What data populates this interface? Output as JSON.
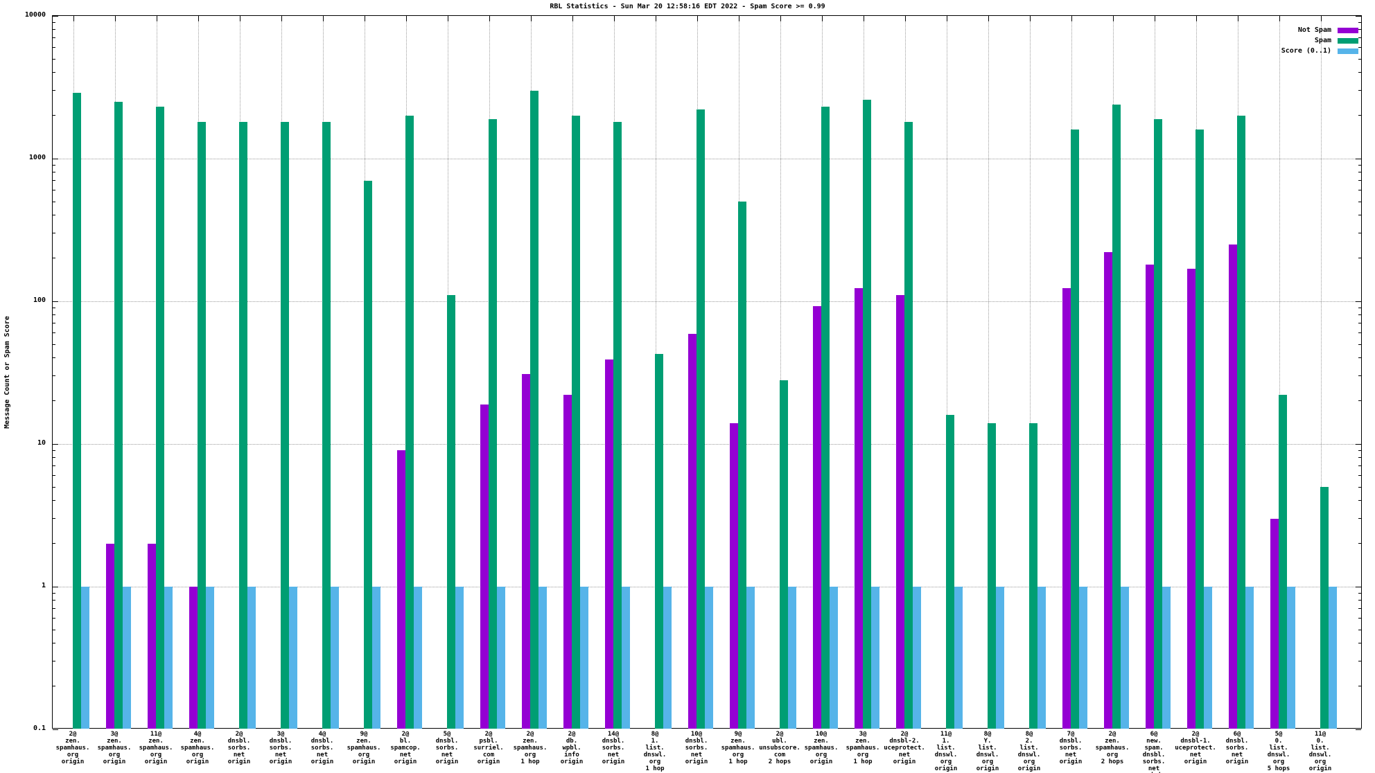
{
  "title": "RBL Statistics - Sun Mar 20 12:58:16 EDT 2022 - Spam Score >= 0.99",
  "ylabel": "Message Count or Spam Score",
  "legend": {
    "items": [
      {
        "label": "Not Spam",
        "color": "#9400d3",
        "series_key": "not_spam"
      },
      {
        "label": "Spam",
        "color": "#009e73",
        "series_key": "spam"
      },
      {
        "label": "Score (0..1)",
        "color": "#56b4e9",
        "series_key": "score"
      }
    ]
  },
  "colors": {
    "not_spam": "#9400d3",
    "spam": "#009e73",
    "score": "#56b4e9",
    "grid": "#9a9a9a",
    "axis": "#000000"
  },
  "chart_data": {
    "type": "bar",
    "yscale": "log",
    "ylim": [
      0.1,
      10000
    ],
    "ytick_labels": [
      "10000",
      "1000",
      "100",
      "10",
      "1",
      "0.1"
    ],
    "grid": true,
    "legend_position": "top-right-inside",
    "series": [
      "Not Spam",
      "Spam",
      "Score (0..1)"
    ],
    "title": "RBL Statistics - Sun Mar 20 12:58:16 EDT 2022 - Spam Score >= 0.99",
    "xlabel": "",
    "ylabel": "Message Count or Spam Score",
    "groups": [
      {
        "label": [
          "2@",
          "zen.",
          "spamhaus.",
          "org",
          "origin"
        ],
        "not_spam": null,
        "spam": 2900,
        "score": 1
      },
      {
        "label": [
          "3@",
          "zen.",
          "spamhaus.",
          "org",
          "origin"
        ],
        "not_spam": 2,
        "spam": 2500,
        "score": 1
      },
      {
        "label": [
          "11@",
          "zen.",
          "spamhaus.",
          "org",
          "origin"
        ],
        "not_spam": 2,
        "spam": 2300,
        "score": 1
      },
      {
        "label": [
          "4@",
          "zen.",
          "spamhaus.",
          "org",
          "origin"
        ],
        "not_spam": 1,
        "spam": 1800,
        "score": 1
      },
      {
        "label": [
          "2@",
          "dnsbl.",
          "sorbs.",
          "net",
          "origin"
        ],
        "not_spam": null,
        "spam": 1800,
        "score": 1
      },
      {
        "label": [
          "3@",
          "dnsbl.",
          "sorbs.",
          "net",
          "origin"
        ],
        "not_spam": null,
        "spam": 1800,
        "score": 1
      },
      {
        "label": [
          "4@",
          "dnsbl.",
          "sorbs.",
          "net",
          "origin"
        ],
        "not_spam": null,
        "spam": 1800,
        "score": 1
      },
      {
        "label": [
          "9@",
          "zen.",
          "spamhaus.",
          "org",
          "origin"
        ],
        "not_spam": null,
        "spam": 700,
        "score": 1
      },
      {
        "label": [
          "2@",
          "bl.",
          "spamcop.",
          "net",
          "origin"
        ],
        "not_spam": 9,
        "spam": 2000,
        "score": 1
      },
      {
        "label": [
          "5@",
          "dnsbl.",
          "sorbs.",
          "net",
          "origin"
        ],
        "not_spam": null,
        "spam": 110,
        "score": 1
      },
      {
        "label": [
          "2@",
          "psbl.",
          "surriel.",
          "com",
          "origin"
        ],
        "not_spam": 19,
        "spam": 1900,
        "score": 1
      },
      {
        "label": [
          "2@",
          "zen.",
          "spamhaus.",
          "org",
          "1 hop"
        ],
        "not_spam": 31,
        "spam": 3000,
        "score": 1
      },
      {
        "label": [
          "2@",
          "db.",
          "wpbl.",
          "info",
          "origin"
        ],
        "not_spam": 22,
        "spam": 2000,
        "score": 1
      },
      {
        "label": [
          "14@",
          "dnsbl.",
          "sorbs.",
          "net",
          "origin"
        ],
        "not_spam": 39,
        "spam": 1800,
        "score": 1
      },
      {
        "label": [
          "8@",
          "1.",
          "list.",
          "dnswl.",
          "org",
          "1 hop"
        ],
        "not_spam": null,
        "spam": 43,
        "score": 1
      },
      {
        "label": [
          "10@",
          "dnsbl.",
          "sorbs.",
          "net",
          "origin"
        ],
        "not_spam": 59,
        "spam": 2200,
        "score": 1
      },
      {
        "label": [
          "9@",
          "zen.",
          "spamhaus.",
          "org",
          "1 hop"
        ],
        "not_spam": 14,
        "spam": 500,
        "score": 1
      },
      {
        "label": [
          "2@",
          "ubl.",
          "unsubscore.",
          "com",
          "2 hops"
        ],
        "not_spam": null,
        "spam": 28,
        "score": 1
      },
      {
        "label": [
          "10@",
          "zen.",
          "spamhaus.",
          "org",
          "origin"
        ],
        "not_spam": 92,
        "spam": 2300,
        "score": 1
      },
      {
        "label": [
          "3@",
          "zen.",
          "spamhaus.",
          "org",
          "1 hop"
        ],
        "not_spam": 123,
        "spam": 2600,
        "score": 1
      },
      {
        "label": [
          "2@",
          "dnsbl-2.",
          "uceprotect.",
          "net",
          "origin"
        ],
        "not_spam": 110,
        "spam": 1800,
        "score": 1
      },
      {
        "label": [
          "11@",
          "1.",
          "list.",
          "dnswl.",
          "org",
          "origin"
        ],
        "not_spam": null,
        "spam": 16,
        "score": 1
      },
      {
        "label": [
          "8@",
          "Y.",
          "list.",
          "dnswl.",
          "org",
          "origin"
        ],
        "not_spam": null,
        "spam": 14,
        "score": 1
      },
      {
        "label": [
          "8@",
          "2.",
          "list.",
          "dnswl.",
          "org",
          "origin"
        ],
        "not_spam": null,
        "spam": 14,
        "score": 1
      },
      {
        "label": [
          "7@",
          "dnsbl.",
          "sorbs.",
          "net",
          "origin"
        ],
        "not_spam": 123,
        "spam": 1600,
        "score": 1
      },
      {
        "label": [
          "2@",
          "zen.",
          "spamhaus.",
          "org",
          "2 hops"
        ],
        "not_spam": 220,
        "spam": 2400,
        "score": 1
      },
      {
        "label": [
          "6@",
          "new.",
          "spam.",
          "dnsbl.",
          "sorbs.",
          "net",
          "origin"
        ],
        "not_spam": 180,
        "spam": 1900,
        "score": 1
      },
      {
        "label": [
          "2@",
          "dnsbl-1.",
          "uceprotect.",
          "net",
          "origin"
        ],
        "not_spam": 170,
        "spam": 1600,
        "score": 1
      },
      {
        "label": [
          "6@",
          "dnsbl.",
          "sorbs.",
          "net",
          "origin"
        ],
        "not_spam": 250,
        "spam": 2000,
        "score": 1
      },
      {
        "label": [
          "5@",
          "0.",
          "list.",
          "dnswl.",
          "org",
          "5 hops"
        ],
        "not_spam": 3,
        "spam": 22,
        "score": 1
      },
      {
        "label": [
          "11@",
          "0.",
          "list.",
          "dnswl.",
          "org",
          "origin"
        ],
        "not_spam": null,
        "spam": 5,
        "score": 1
      }
    ]
  }
}
